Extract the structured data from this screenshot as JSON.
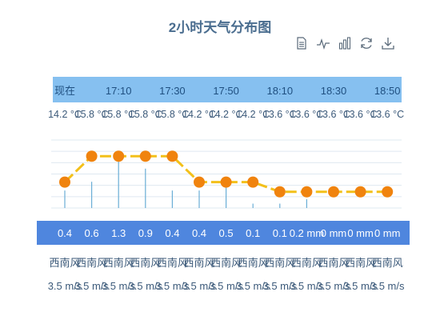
{
  "title": "2小时天气分布图",
  "toolbox": {
    "icons": [
      "data-view-icon",
      "line-chart-icon",
      "bar-chart-icon",
      "restore-icon",
      "download-icon"
    ]
  },
  "colors": {
    "accent": "#f0830e",
    "line": "#f3c01a",
    "bar": "#6aaed6",
    "time_band": "#86c0f0",
    "precip_band": "#4f86de",
    "text": "#3c5a7a"
  },
  "chart_data": {
    "type": "line",
    "title": "2小时天气分布图",
    "time_labels": [
      "现在",
      "17:10",
      "17:30",
      "17:50",
      "18:10",
      "18:30",
      "18:50"
    ],
    "temperature": {
      "values": [
        14.2,
        15.8,
        15.8,
        15.8,
        15.8,
        14.2,
        14.2,
        14.2,
        13.6,
        13.6,
        13.6,
        13.6,
        13.6
      ],
      "labels": [
        "14.2 °C",
        "15.8 °C",
        "15.8 °C",
        "15.8 °C",
        "15.8 °C",
        "14.2 °C",
        "14.2 °C",
        "14.2 °C",
        "13.6 °C",
        "13.6 °C",
        "13.6 °C",
        "13.6 °C",
        "13.6 °C"
      ]
    },
    "precipitation": {
      "values": [
        0.4,
        0.6,
        1.3,
        0.9,
        0.4,
        0.4,
        0.5,
        0.1,
        0.1,
        0.2,
        0,
        0,
        0
      ],
      "labels": [
        "0.4",
        "0.6",
        "1.3",
        "0.9",
        "0.4",
        "0.4",
        "0.5",
        "0.1",
        "0.1",
        "0.2 mm",
        "0 mm",
        "0 mm",
        "0 mm"
      ]
    },
    "wind_direction": [
      "西南风",
      "西南风",
      "西南风",
      "西南风",
      "西南风",
      "西南风",
      "西南风",
      "西南风",
      "西南风",
      "西南风",
      "西南风",
      "西南风",
      "西南风"
    ],
    "wind_speed": [
      "3.5 m/s",
      "3.5 m/s",
      "3.5 m/s",
      "3.5 m/s",
      "3.5 m/s",
      "3.5 m/s",
      "3.5 m/s",
      "3.5 m/s",
      "3.5 m/s",
      "3.5 m/s",
      "3.5 m/s",
      "3.5 m/s",
      "3.5 m/s"
    ],
    "grid": true
  }
}
